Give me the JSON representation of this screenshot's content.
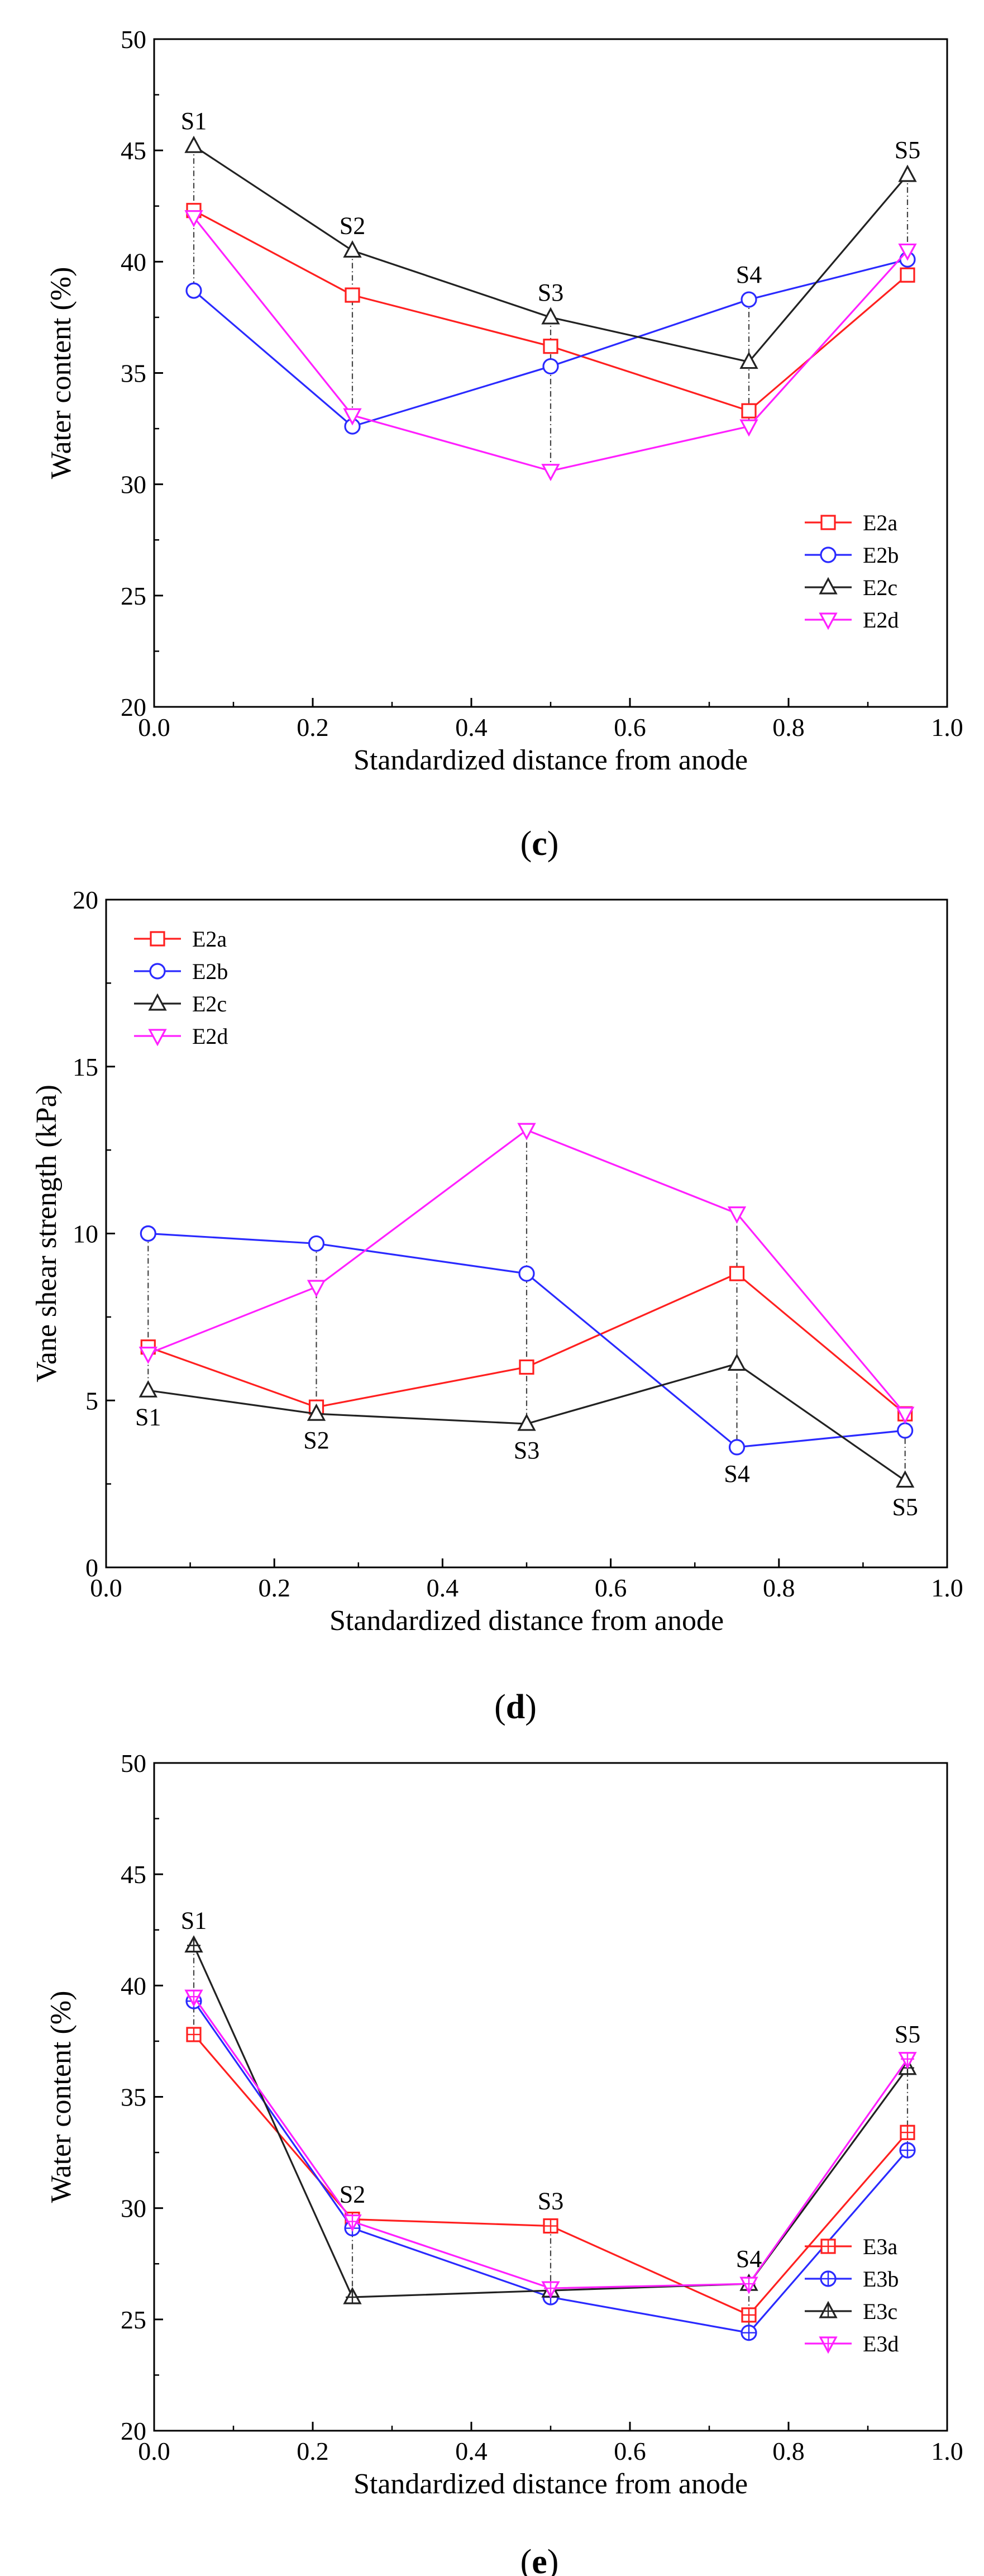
{
  "chart_data": [
    {
      "id": "c",
      "type": "line",
      "caption": {
        "open": "(",
        "letter": "c",
        "close": ")"
      },
      "xlabel": "Standardized distance from anode",
      "ylabel": "Water content (%)",
      "xlim": [
        0.0,
        1.0
      ],
      "ylim": [
        20,
        50
      ],
      "xticks": [
        0.0,
        0.2,
        0.4,
        0.6,
        0.8,
        1.0
      ],
      "xtick_labels": [
        "0.0",
        "0.2",
        "0.4",
        "0.6",
        "0.8",
        "1.0"
      ],
      "yticks": [
        20,
        25,
        30,
        35,
        40,
        45,
        50
      ],
      "ytick_labels": [
        "20",
        "25",
        "30",
        "35",
        "40",
        "45",
        "50"
      ],
      "legend_position": "bottom-right",
      "x": [
        0.05,
        0.25,
        0.5,
        0.75,
        0.95
      ],
      "series": [
        {
          "name": "E2a",
          "color": "#ff2020",
          "marker": "square",
          "values": [
            42.3,
            38.5,
            36.2,
            33.3,
            39.4
          ]
        },
        {
          "name": "E2b",
          "color": "#2a2aff",
          "marker": "circle",
          "values": [
            38.7,
            32.6,
            35.3,
            38.3,
            40.1
          ]
        },
        {
          "name": "E2c",
          "color": "#222222",
          "marker": "triangle-up",
          "values": [
            45.2,
            40.5,
            37.5,
            35.5,
            43.9
          ]
        },
        {
          "name": "E2d",
          "color": "#ff20ff",
          "marker": "triangle-down",
          "values": [
            42.0,
            33.1,
            30.6,
            32.6,
            40.5
          ]
        }
      ],
      "annotations": [
        {
          "text": "S1",
          "x": 0.05,
          "y": 45.2,
          "pos": "above"
        },
        {
          "text": "S2",
          "x": 0.25,
          "y": 40.5,
          "pos": "above"
        },
        {
          "text": "S3",
          "x": 0.5,
          "y": 37.5,
          "pos": "above"
        },
        {
          "text": "S4",
          "x": 0.75,
          "y": 38.3,
          "pos": "above"
        },
        {
          "text": "S5",
          "x": 0.95,
          "y": 43.9,
          "pos": "above"
        }
      ]
    },
    {
      "id": "d",
      "type": "line",
      "caption": {
        "open": "(",
        "letter": "d",
        "close": ")"
      },
      "xlabel": "Standardized distance from anode",
      "ylabel": "Vane shear strength (kPa)",
      "xlim": [
        0.0,
        1.0
      ],
      "ylim": [
        0,
        20
      ],
      "xticks": [
        0.0,
        0.2,
        0.4,
        0.6,
        0.8,
        1.0
      ],
      "xtick_labels": [
        "0.0",
        "0.2",
        "0.4",
        "0.6",
        "0.8",
        "1.0"
      ],
      "yticks": [
        0,
        5,
        10,
        15,
        20
      ],
      "ytick_labels": [
        "0",
        "5",
        "10",
        "15",
        "20"
      ],
      "legend_position": "top-left",
      "x": [
        0.05,
        0.25,
        0.5,
        0.75,
        0.95
      ],
      "series": [
        {
          "name": "E2a",
          "color": "#ff2020",
          "marker": "square",
          "values": [
            6.6,
            4.8,
            6.0,
            8.8,
            4.6
          ]
        },
        {
          "name": "E2b",
          "color": "#2a2aff",
          "marker": "circle",
          "values": [
            10.0,
            9.7,
            8.8,
            3.6,
            4.1
          ]
        },
        {
          "name": "E2c",
          "color": "#222222",
          "marker": "triangle-up",
          "values": [
            5.3,
            4.6,
            4.3,
            6.1,
            2.6
          ]
        },
        {
          "name": "E2d",
          "color": "#ff20ff",
          "marker": "triangle-down",
          "values": [
            6.4,
            8.4,
            13.1,
            10.6,
            4.6
          ]
        }
      ],
      "annotations": [
        {
          "text": "S1",
          "x": 0.05,
          "y": 5.3,
          "pos": "below"
        },
        {
          "text": "S2",
          "x": 0.25,
          "y": 4.6,
          "pos": "below"
        },
        {
          "text": "S3",
          "x": 0.5,
          "y": 4.3,
          "pos": "below"
        },
        {
          "text": "S4",
          "x": 0.75,
          "y": 3.6,
          "pos": "below"
        },
        {
          "text": "S5",
          "x": 0.95,
          "y": 2.6,
          "pos": "below"
        }
      ]
    },
    {
      "id": "e",
      "type": "line",
      "caption": {
        "open": "(",
        "letter": "e",
        "close": ")"
      },
      "xlabel": "Standardized distance from anode",
      "ylabel": "Water content (%)",
      "xlim": [
        0.0,
        1.0
      ],
      "ylim": [
        20,
        50
      ],
      "xticks": [
        0.0,
        0.2,
        0.4,
        0.6,
        0.8,
        1.0
      ],
      "xtick_labels": [
        "0.0",
        "0.2",
        "0.4",
        "0.6",
        "0.8",
        "1.0"
      ],
      "yticks": [
        20,
        25,
        30,
        35,
        40,
        45,
        50
      ],
      "ytick_labels": [
        "20",
        "25",
        "30",
        "35",
        "40",
        "45",
        "50"
      ],
      "legend_position": "bottom-right",
      "x": [
        0.05,
        0.25,
        0.5,
        0.75,
        0.95
      ],
      "series": [
        {
          "name": "E3a",
          "color": "#ff2020",
          "marker": "square-cross",
          "values": [
            37.8,
            29.5,
            29.2,
            25.2,
            33.4
          ]
        },
        {
          "name": "E3b",
          "color": "#2a2aff",
          "marker": "circle-cross",
          "values": [
            39.3,
            29.1,
            26.0,
            24.4,
            32.6
          ]
        },
        {
          "name": "E3c",
          "color": "#222222",
          "marker": "triangle-up-cross",
          "values": [
            41.8,
            26.0,
            26.3,
            26.6,
            36.3
          ]
        },
        {
          "name": "E3d",
          "color": "#ff20ff",
          "marker": "triangle-down-cross",
          "values": [
            39.5,
            29.4,
            26.4,
            26.6,
            36.7
          ]
        }
      ],
      "annotations": [
        {
          "text": "S1",
          "x": 0.05,
          "y": 41.8,
          "pos": "above"
        },
        {
          "text": "S2",
          "x": 0.25,
          "y": 29.5,
          "pos": "above"
        },
        {
          "text": "S3",
          "x": 0.5,
          "y": 29.2,
          "pos": "above"
        },
        {
          "text": "S4",
          "x": 0.75,
          "y": 26.6,
          "pos": "above"
        },
        {
          "text": "S5",
          "x": 0.95,
          "y": 36.7,
          "pos": "above"
        }
      ]
    }
  ]
}
